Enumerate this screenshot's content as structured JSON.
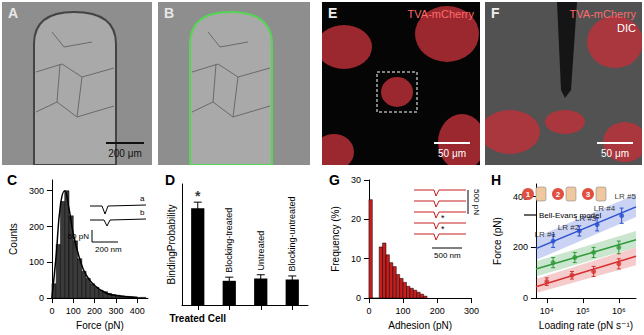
{
  "images": [
    {
      "title": "A",
      "scale_bar": "200 μm"
    },
    {
      "title": "B"
    },
    {
      "title": "E",
      "labels": [
        "TVA-mCherry"
      ],
      "scale_bar": "50 μm"
    },
    {
      "title": "F",
      "labels": [
        "TVA-mCherry",
        "DIC"
      ],
      "scale_bar": "50 μm"
    }
  ],
  "chart_data": [
    {
      "title": "C",
      "type": "histogram",
      "x_label": "Force (pN)",
      "y_label": "Counts",
      "bins": [
        0,
        20,
        40,
        60,
        80,
        100,
        120,
        140,
        160,
        180,
        200,
        220,
        240,
        260,
        280,
        300,
        320,
        340,
        360,
        380,
        400,
        420,
        440
      ],
      "counts": [
        40,
        150,
        270,
        300,
        230,
        160,
        110,
        75,
        55,
        40,
        30,
        22,
        18,
        13,
        10,
        8,
        6,
        5,
        4,
        3,
        2,
        2
      ],
      "color": "#3a3a3a",
      "fit": {
        "x": [
          0,
          20,
          40,
          60,
          80,
          100,
          130,
          160,
          200,
          250,
          300,
          400
        ],
        "values": [
          0,
          120,
          260,
          300,
          250,
          180,
          110,
          65,
          35,
          15,
          7,
          2
        ]
      },
      "xlim": [
        0,
        450
      ],
      "xticks": [
        0,
        100,
        200,
        300,
        400
      ],
      "ylim": [
        0,
        330
      ],
      "yticks": [
        0,
        100,
        200,
        300
      ],
      "annotations": [
        "a",
        "b",
        "60 pN",
        "200 nm"
      ]
    },
    {
      "title": "D",
      "type": "bar",
      "y_label": "BindingProbability",
      "categories": [
        "Treated Cell",
        "Blocking-treated",
        "Untreated",
        "Blocking-untreated"
      ],
      "values": [
        0.8,
        0.2,
        0.22,
        0.21
      ],
      "errors": [
        0.05,
        0.03,
        0.03,
        0.03
      ],
      "color": "#000000",
      "ylim": [
        0,
        1
      ],
      "tick_labels": "x",
      "annotations": [
        {
          "text": "*",
          "x": "Treated Cell",
          "y": 0.9
        }
      ]
    },
    {
      "title": "G",
      "type": "histogram",
      "x_label": "Adhesion (pN)",
      "y_label": "Frequency (%)",
      "bins": [
        0,
        10,
        20,
        30,
        40,
        50,
        60,
        70,
        80,
        90,
        100,
        110,
        120,
        130,
        140,
        150,
        160,
        170
      ],
      "counts": [
        25,
        0,
        0,
        13,
        14,
        11,
        9,
        8,
        6,
        5,
        4,
        3,
        2.5,
        2,
        1.5,
        1,
        0.5
      ],
      "color": "#c81e1e",
      "xlim": [
        0,
        300
      ],
      "xticks": [
        0,
        100,
        200,
        300
      ],
      "ylim": [
        0,
        30
      ],
      "yticks": [
        0,
        10,
        20,
        30
      ],
      "annotations": [
        "500 pN",
        "500 nm",
        "*",
        "*"
      ]
    },
    {
      "title": "H",
      "type": "scatter",
      "x_label": "Loading rate (pN s⁻¹)",
      "y_label": "Force (pN)",
      "log": "x",
      "xlim": [
        5000,
        3000000
      ],
      "xticks": [
        {
          "value": 10000,
          "label": "10⁴"
        },
        {
          "value": 100000,
          "label": "10⁵"
        },
        {
          "value": 1000000,
          "label": "10⁶"
        }
      ],
      "ylim": [
        0,
        450
      ],
      "yticks": [
        0,
        200,
        400
      ],
      "series": [
        {
          "color": "#2b4fcf",
          "x": [
            15000,
            80000,
            250000,
            1200000
          ],
          "values": [
            225,
            265,
            290,
            325
          ],
          "errors": [
            25,
            20,
            25,
            30
          ],
          "fit": {
            "x": [
              5000,
              3000000
            ],
            "values": [
              195,
              360
            ],
            "low": [
              150,
              320
            ],
            "high": [
              240,
              410
            ]
          }
        },
        {
          "color": "#2f9a3a",
          "x": [
            15000,
            60000,
            200000,
            1000000
          ],
          "values": [
            140,
            160,
            180,
            200
          ],
          "errors": [
            20,
            20,
            20,
            25
          ],
          "fit": {
            "x": [
              5000,
              3000000
            ],
            "values": [
              115,
              230
            ],
            "low": [
              85,
              200
            ],
            "high": [
              145,
              265
            ]
          }
        },
        {
          "color": "#d63030",
          "x": [
            10000,
            50000,
            200000,
            1000000
          ],
          "values": [
            65,
            90,
            105,
            135
          ],
          "errors": [
            15,
            15,
            20,
            20
          ],
          "fit": {
            "x": [
              5000,
              3000000
            ],
            "values": [
              45,
              165
            ],
            "low": [
              20,
              130
            ],
            "high": [
              75,
              200
            ]
          }
        }
      ],
      "annotations": [
        {
          "text": "LR #1",
          "x": 9000,
          "y": 250
        },
        {
          "text": "LR #2",
          "x": 40000,
          "y": 280
        },
        {
          "text": "LR #3",
          "x": 120000,
          "y": 315
        },
        {
          "text": "LR #4",
          "x": 400000,
          "y": 355
        },
        {
          "text": "LR #5",
          "x": 1500000,
          "y": 400
        },
        {
          "text": "Bell-Evans model"
        },
        {
          "text": "1"
        },
        {
          "text": "2"
        },
        {
          "text": "3"
        }
      ]
    }
  ]
}
